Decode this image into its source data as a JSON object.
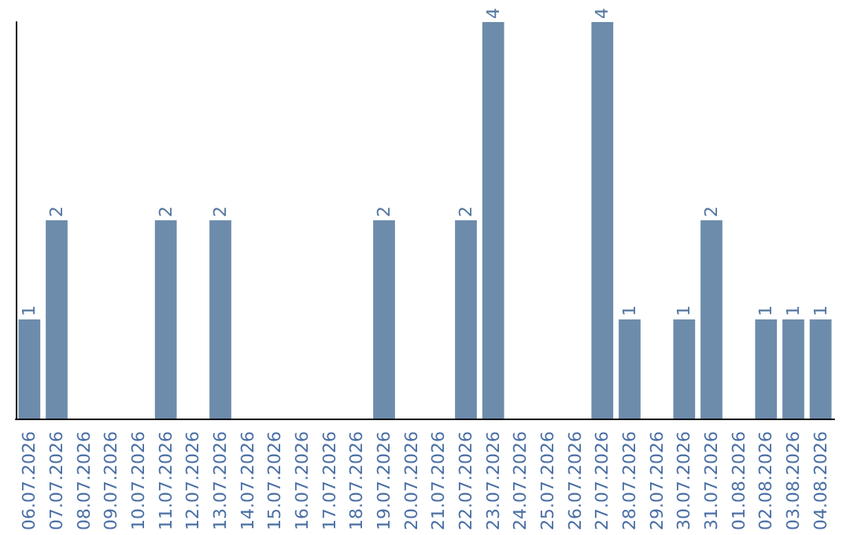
{
  "chart_data": {
    "type": "bar",
    "categories": [
      "06.07.2026",
      "07.07.2026",
      "08.07.2026",
      "09.07.2026",
      "10.07.2026",
      "11.07.2026",
      "12.07.2026",
      "13.07.2026",
      "14.07.2026",
      "15.07.2026",
      "16.07.2026",
      "17.07.2026",
      "18.07.2026",
      "19.07.2026",
      "20.07.2026",
      "21.07.2026",
      "22.07.2026",
      "23.07.2026",
      "24.07.2026",
      "25.07.2026",
      "26.07.2026",
      "27.07.2026",
      "28.07.2026",
      "29.07.2026",
      "30.07.2026",
      "31.07.2026",
      "01.08.2026",
      "02.08.2026",
      "03.08.2026",
      "04.08.2026"
    ],
    "values": [
      1,
      2,
      0,
      0,
      0,
      2,
      0,
      2,
      0,
      0,
      0,
      0,
      0,
      2,
      0,
      0,
      2,
      4,
      0,
      0,
      0,
      4,
      1,
      0,
      1,
      2,
      0,
      1,
      1,
      1
    ],
    "value_labels": [
      "1",
      "2",
      null,
      null,
      null,
      "2",
      null,
      "2",
      null,
      null,
      null,
      null,
      null,
      "2",
      null,
      null,
      "2",
      "4",
      null,
      null,
      null,
      "4",
      "1",
      null,
      "1",
      "2",
      null,
      "1",
      "1",
      "1"
    ],
    "color": "#6d8cab",
    "tick_labels": "x"
  }
}
